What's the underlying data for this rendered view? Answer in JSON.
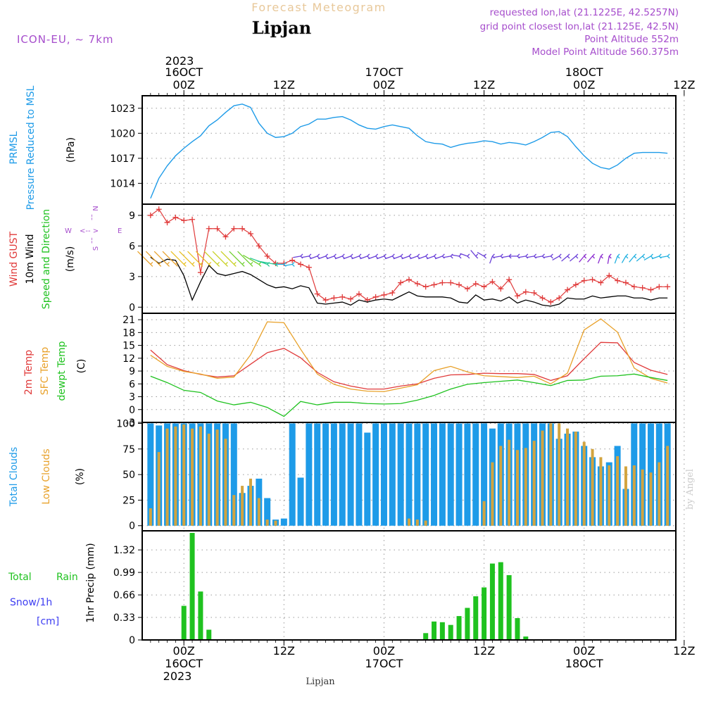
{
  "header": {
    "title": "Forecast Meteogram",
    "location": "Lipjan",
    "model": "ICON-EU, ~ 7km",
    "requested": "requested lon,lat (21.1225E, 42.5257N)",
    "grid": "grid point closest lon,lat (21.125E, 42.5N)",
    "altitude": "Point Altitude 552m",
    "model_altitude": "Model Point Altitude 560.375m"
  },
  "top_axis": {
    "year": "2023",
    "date_labels": [
      {
        "hour": 0,
        "date": "16OCT",
        "time": "00Z"
      },
      {
        "hour": 12,
        "date": "",
        "time": "12Z"
      },
      {
        "hour": 24,
        "date": "17OCT",
        "time": "00Z"
      },
      {
        "hour": 36,
        "date": "",
        "time": "12Z"
      },
      {
        "hour": 48,
        "date": "18OCT",
        "time": "00Z"
      },
      {
        "hour": 60,
        "date": "",
        "time": "12Z"
      }
    ]
  },
  "bottom_axis": {
    "year": "2023",
    "footer": "Lipjan",
    "date_labels": [
      {
        "hour": 0,
        "date": "16OCT",
        "time": "00Z"
      },
      {
        "hour": 12,
        "date": "",
        "time": "12Z"
      },
      {
        "hour": 24,
        "date": "17OCT",
        "time": "00Z"
      },
      {
        "hour": 36,
        "date": "",
        "time": "12Z"
      },
      {
        "hour": 48,
        "date": "18OCT",
        "time": "00Z"
      },
      {
        "hour": 60,
        "date": "",
        "time": "12Z"
      }
    ]
  },
  "watermark": "by Angel",
  "colors": {
    "pressure": "#1e9be8",
    "gust": "#e03a3a",
    "wind": "#000000",
    "temp2m": "#e03a3a",
    "sfc": "#e8a12a",
    "dewpt": "#1fc21f",
    "total_clouds": "#1e9be8",
    "low_clouds": "#d2a43f",
    "rain": "#1fc21f",
    "snow": "#3d3df2",
    "purple": "#a64dcc"
  },
  "panels": {
    "pressure": {
      "labels": [
        "PRMSL",
        "Pressure Reduced to MSL"
      ],
      "unit": "(hPa)"
    },
    "wind": {
      "labels": [
        "Wind GUST",
        "10m Wind",
        "Speed and Direction"
      ],
      "unit": "(m/s)",
      "compass": {
        "n": "N",
        "s": "S",
        "w": "W",
        "e": "E"
      }
    },
    "temp": {
      "labels": [
        "2m Temp",
        "SFC Temp",
        "dewpt Temp"
      ],
      "unit": "(C)"
    },
    "clouds": {
      "labels": [
        "Total Clouds",
        "Low Clouds"
      ],
      "unit": "(%)"
    },
    "precip": {
      "labels": [
        "Total",
        "Rain",
        "Snow/1h",
        "[cm]"
      ],
      "unit": "1hr Precip (mm)"
    }
  },
  "chart_data": [
    {
      "type": "line",
      "title": "PRMSL Pressure Reduced to MSL",
      "ylabel": "(hPa)",
      "ylim": [
        1011.5,
        1024.5
      ],
      "yticks": [
        1014,
        1017,
        1020,
        1023
      ],
      "xlim": [
        -5,
        59
      ],
      "x_times": [
        -4,
        -3,
        -2,
        -1,
        0,
        1,
        2,
        3,
        4,
        5,
        6,
        7,
        8,
        9,
        10,
        11,
        12,
        13,
        14,
        15,
        16,
        17,
        18,
        19,
        20,
        21,
        22,
        23,
        24,
        25,
        26,
        27,
        28,
        29,
        30,
        31,
        32,
        33,
        34,
        35,
        36,
        37,
        38,
        39,
        40,
        41,
        42,
        43,
        44,
        45,
        46,
        47,
        48,
        49,
        50,
        51,
        52,
        53,
        54,
        55,
        56,
        57,
        58
      ],
      "series": [
        {
          "name": "PRMSL",
          "values": [
            1012.2,
            1014.6,
            1016.1,
            1017.3,
            1018.2,
            1019.0,
            1019.7,
            1020.9,
            1021.6,
            1022.5,
            1023.3,
            1023.5,
            1023.1,
            1021.2,
            1020.0,
            1019.5,
            1019.6,
            1020.0,
            1020.8,
            1021.1,
            1021.7,
            1021.7,
            1021.9,
            1022.0,
            1021.6,
            1021.0,
            1020.6,
            1020.5,
            1020.8,
            1021.0,
            1020.8,
            1020.6,
            1019.7,
            1019.0,
            1018.8,
            1018.7,
            1018.3,
            1018.6,
            1018.8,
            1018.9,
            1019.1,
            1019.0,
            1018.7,
            1018.9,
            1018.8,
            1018.6,
            1019.0,
            1019.5,
            1020.1,
            1020.2,
            1019.6,
            1018.4,
            1017.3,
            1016.4,
            1015.9,
            1015.7,
            1016.2,
            1017.0,
            1017.6,
            1017.7,
            1017.7,
            1017.7,
            1017.6
          ]
        }
      ]
    },
    {
      "type": "line",
      "title": "Wind GUST / 10m Wind Speed and Direction",
      "ylabel": "(m/s)",
      "ylim": [
        -0.6,
        10.1
      ],
      "yticks": [
        0,
        3,
        6,
        9
      ],
      "x_times": [
        -4,
        -3,
        -2,
        -1,
        0,
        1,
        2,
        3,
        4,
        5,
        6,
        7,
        8,
        9,
        10,
        11,
        12,
        13,
        14,
        15,
        16,
        17,
        18,
        19,
        20,
        21,
        22,
        23,
        24,
        25,
        26,
        27,
        28,
        29,
        30,
        31,
        32,
        33,
        34,
        35,
        36,
        37,
        38,
        39,
        40,
        41,
        42,
        43,
        44,
        45,
        46,
        47,
        48,
        49,
        50,
        51,
        52,
        53,
        54,
        55,
        56,
        57,
        58
      ],
      "series": [
        {
          "name": "Wind GUST",
          "values": [
            9.0,
            9.6,
            8.3,
            8.8,
            8.5,
            8.6,
            3.4,
            7.7,
            7.7,
            6.9,
            7.7,
            7.7,
            7.2,
            6.0,
            5.0,
            4.3,
            4.3,
            4.6,
            4.2,
            3.9,
            1.3,
            0.7,
            0.9,
            1.0,
            0.8,
            1.3,
            0.7,
            1.0,
            1.2,
            1.4,
            2.4,
            2.7,
            2.3,
            2.0,
            2.2,
            2.4,
            2.4,
            2.2,
            1.8,
            2.3,
            2.0,
            2.5,
            1.8,
            2.7,
            1.1,
            1.5,
            1.4,
            0.9,
            0.5,
            0.9,
            1.7,
            2.2,
            2.6,
            2.7,
            2.4,
            3.1,
            2.6,
            2.4,
            2.0,
            1.9,
            1.7,
            2.0,
            2.0
          ]
        },
        {
          "name": "10m Wind",
          "values": [
            4.9,
            4.3,
            4.7,
            4.6,
            3.1,
            0.7,
            2.5,
            4.1,
            3.3,
            3.1,
            3.3,
            3.5,
            3.2,
            2.7,
            2.2,
            1.9,
            2.0,
            1.8,
            2.1,
            1.9,
            0.4,
            0.3,
            0.4,
            0.5,
            0.2,
            0.7,
            0.5,
            0.7,
            0.8,
            0.7,
            1.1,
            1.5,
            1.1,
            1.0,
            1.0,
            1.0,
            0.9,
            0.5,
            0.4,
            1.2,
            0.7,
            0.8,
            0.6,
            1.0,
            0.4,
            0.7,
            0.5,
            0.2,
            0.1,
            0.3,
            0.9,
            0.8,
            0.8,
            1.1,
            0.9,
            1.0,
            1.1,
            1.1,
            0.9,
            0.9,
            0.7,
            0.9,
            0.9
          ]
        }
      ],
      "wind_barb_direction_deg": [
        315,
        315,
        315,
        315,
        315,
        315,
        315,
        315,
        315,
        315,
        315,
        315,
        315,
        300,
        290,
        280,
        270,
        260,
        260,
        260,
        250,
        250,
        250,
        250,
        250,
        250,
        250,
        250,
        250,
        250,
        250,
        250,
        250,
        250,
        250,
        250,
        260,
        280,
        290,
        320,
        300,
        200,
        260,
        260,
        270,
        260,
        260,
        260,
        260,
        240,
        230,
        230,
        220,
        220,
        200,
        190,
        200,
        210,
        220,
        230,
        240,
        250,
        260
      ]
    },
    {
      "type": "line",
      "title": "2m Temp / SFC Temp / dewpt Temp",
      "ylabel": "(C)",
      "ylim": [
        -3,
        22.5
      ],
      "yticks": [
        -3,
        0,
        3,
        6,
        9,
        12,
        15,
        18,
        21
      ],
      "x_times": [
        -4,
        -2,
        0,
        2,
        4,
        6,
        8,
        10,
        12,
        14,
        16,
        18,
        20,
        22,
        24,
        26,
        28,
        30,
        32,
        34,
        36,
        38,
        40,
        42,
        44,
        46,
        48,
        50,
        52,
        54,
        56,
        58
      ],
      "series": [
        {
          "name": "2m Temp",
          "values": [
            13.9,
            10.5,
            9.1,
            8.2,
            7.6,
            7.9,
            10.6,
            13.3,
            14.3,
            12.1,
            8.7,
            6.5,
            5.5,
            4.8,
            4.8,
            5.5,
            6.0,
            7.3,
            8.1,
            8.2,
            8.5,
            8.4,
            8.4,
            8.2,
            6.8,
            7.9,
            11.9,
            15.7,
            15.6,
            11.0,
            9.2,
            8.2
          ]
        },
        {
          "name": "SFC Temp",
          "values": [
            12.7,
            10.1,
            8.9,
            8.3,
            7.3,
            7.6,
            12.8,
            20.5,
            20.3,
            14.1,
            8.3,
            5.9,
            4.8,
            4.3,
            4.2,
            5.0,
            5.8,
            9.1,
            10.1,
            8.8,
            7.9,
            7.7,
            7.5,
            7.8,
            6.0,
            8.5,
            18.6,
            21.2,
            18.1,
            9.7,
            7.3,
            6.2
          ]
        },
        {
          "name": "dewpt Temp",
          "values": [
            7.8,
            6.3,
            4.5,
            4.0,
            2.0,
            1.1,
            1.7,
            0.5,
            -1.6,
            1.9,
            1.1,
            1.7,
            1.7,
            1.4,
            1.3,
            1.4,
            2.2,
            3.3,
            4.8,
            5.9,
            6.3,
            6.6,
            6.9,
            6.3,
            5.6,
            6.8,
            6.9,
            7.8,
            7.9,
            8.3,
            7.5,
            6.8
          ]
        }
      ]
    },
    {
      "type": "bar",
      "title": "Total Clouds / Low Clouds",
      "ylabel": "(%)",
      "ylim": [
        -5,
        101
      ],
      "yticks": [
        0,
        25,
        50,
        75,
        100
      ],
      "x_times": [
        -4,
        -3,
        -2,
        -1,
        0,
        1,
        2,
        3,
        4,
        5,
        6,
        7,
        8,
        9,
        10,
        11,
        12,
        13,
        14,
        15,
        16,
        17,
        18,
        19,
        20,
        21,
        22,
        23,
        24,
        25,
        26,
        27,
        28,
        29,
        30,
        31,
        32,
        33,
        34,
        35,
        36,
        37,
        38,
        39,
        40,
        41,
        42,
        43,
        44,
        45,
        46,
        47,
        48,
        49,
        50,
        51,
        52,
        53,
        54,
        55,
        56,
        57,
        58
      ],
      "series": [
        {
          "name": "Total Clouds",
          "values": [
            100,
            98,
            100,
            100,
            100,
            100,
            100,
            100,
            100,
            100,
            100,
            32,
            39,
            46,
            27,
            6,
            7,
            100,
            47,
            100,
            100,
            100,
            100,
            100,
            100,
            100,
            91,
            100,
            100,
            100,
            100,
            100,
            100,
            100,
            100,
            100,
            100,
            100,
            100,
            100,
            100,
            95,
            100,
            100,
            100,
            100,
            100,
            100,
            100,
            85,
            90,
            92,
            78,
            67,
            58,
            62,
            78,
            36,
            100,
            100,
            100,
            100,
            100
          ]
        },
        {
          "name": "Low Clouds",
          "values": [
            17,
            72,
            95,
            97,
            99,
            95,
            97,
            90,
            94,
            85,
            30,
            39,
            46,
            27,
            6,
            5,
            0,
            0,
            0,
            0,
            0,
            0,
            0,
            0,
            0,
            0,
            0,
            0,
            0,
            0,
            0,
            7,
            6,
            5,
            0,
            0,
            0,
            0,
            0,
            0,
            24,
            62,
            78,
            84,
            74,
            76,
            83,
            93,
            100,
            100,
            95,
            92,
            82,
            75,
            67,
            59,
            68,
            58,
            59,
            55,
            52,
            62,
            78
          ]
        }
      ]
    },
    {
      "type": "bar",
      "title": "1hr Precip (mm)",
      "ylabel": "1hr Precip (mm)",
      "ylim": [
        0,
        1.6
      ],
      "yticks": [
        0,
        0.33,
        0.66,
        0.99,
        1.32
      ],
      "x_times": [
        -4,
        -3,
        -2,
        -1,
        0,
        1,
        2,
        3,
        4,
        5,
        6,
        7,
        8,
        9,
        10,
        11,
        12,
        13,
        14,
        15,
        16,
        17,
        18,
        19,
        20,
        21,
        22,
        23,
        24,
        25,
        26,
        27,
        28,
        29,
        30,
        31,
        32,
        33,
        34,
        35,
        36,
        37,
        38,
        39,
        40,
        41,
        42,
        43,
        44,
        45,
        46,
        47,
        48,
        49,
        50,
        51,
        52,
        53,
        54,
        55,
        56,
        57,
        58
      ],
      "series": [
        {
          "name": "Total Rain",
          "values": [
            0,
            0,
            0,
            0,
            0.5,
            1.57,
            0.71,
            0.15,
            0,
            0,
            0,
            0,
            0,
            0,
            0,
            0,
            0,
            0,
            0,
            0,
            0,
            0,
            0,
            0,
            0,
            0,
            0,
            0,
            0,
            0,
            0,
            0,
            0,
            0.1,
            0.27,
            0.26,
            0.22,
            0.35,
            0.47,
            0.64,
            0.77,
            1.12,
            1.14,
            0.95,
            0.32,
            0.05,
            0,
            0,
            0,
            0,
            0,
            0,
            0,
            0,
            0,
            0,
            0,
            0,
            0,
            0,
            0,
            0,
            0
          ]
        },
        {
          "name": "Snow/1h",
          "values": [
            0,
            0,
            0,
            0,
            0,
            0,
            0,
            0,
            0,
            0,
            0,
            0,
            0,
            0,
            0,
            0,
            0,
            0,
            0,
            0,
            0,
            0,
            0,
            0,
            0,
            0,
            0,
            0,
            0,
            0,
            0,
            0,
            0,
            0,
            0,
            0,
            0,
            0,
            0,
            0,
            0,
            0,
            0,
            0,
            0,
            0,
            0,
            0,
            0,
            0,
            0,
            0,
            0,
            0,
            0,
            0,
            0,
            0,
            0,
            0,
            0,
            0,
            0
          ]
        }
      ]
    }
  ]
}
